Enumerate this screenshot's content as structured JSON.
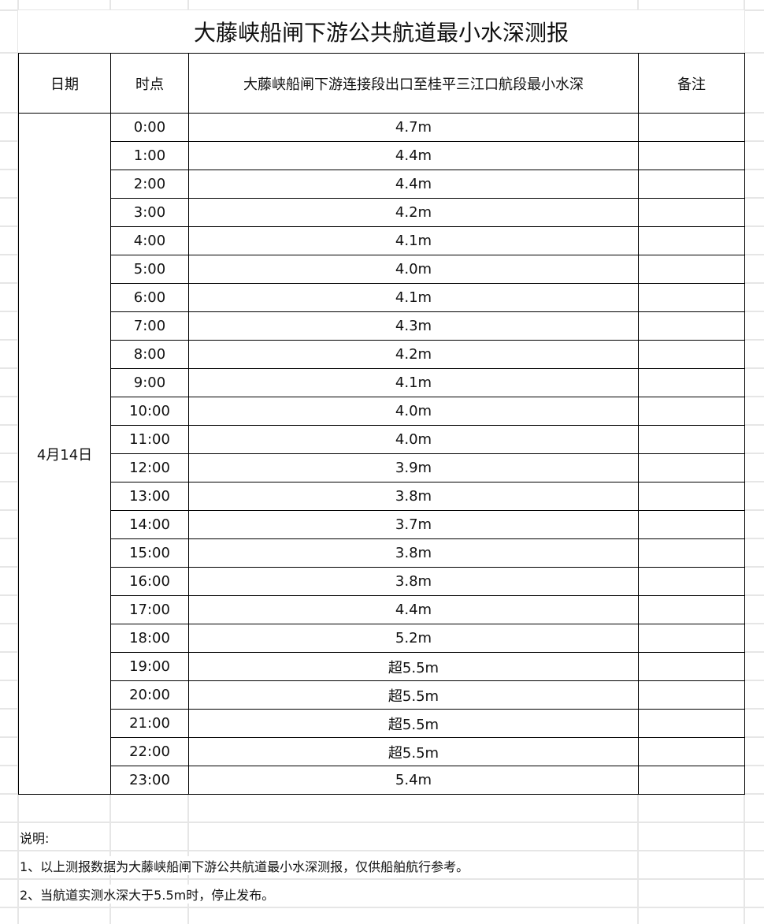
{
  "title": "大藤峡船闸下游公共航道最小水深测报",
  "headers": {
    "date": "日期",
    "time": "时点",
    "depth": "大藤峡船闸下游连接段出口至桂平三江口航段最小水深",
    "remark": "备注"
  },
  "date": "4月14日",
  "rows": [
    {
      "time": "0:00",
      "depth": "4.7m"
    },
    {
      "time": "1:00",
      "depth": "4.4m"
    },
    {
      "time": "2:00",
      "depth": "4.4m"
    },
    {
      "time": "3:00",
      "depth": "4.2m"
    },
    {
      "time": "4:00",
      "depth": "4.1m"
    },
    {
      "time": "5:00",
      "depth": "4.0m"
    },
    {
      "time": "6:00",
      "depth": "4.1m"
    },
    {
      "time": "7:00",
      "depth": "4.3m"
    },
    {
      "time": "8:00",
      "depth": "4.2m"
    },
    {
      "time": "9:00",
      "depth": "4.1m"
    },
    {
      "time": "10:00",
      "depth": "4.0m"
    },
    {
      "time": "11:00",
      "depth": "4.0m"
    },
    {
      "time": "12:00",
      "depth": "3.9m"
    },
    {
      "time": "13:00",
      "depth": "3.8m"
    },
    {
      "time": "14:00",
      "depth": "3.7m"
    },
    {
      "time": "15:00",
      "depth": "3.8m"
    },
    {
      "time": "16:00",
      "depth": "3.8m"
    },
    {
      "time": "17:00",
      "depth": "4.4m"
    },
    {
      "time": "18:00",
      "depth": "5.2m"
    },
    {
      "time": "19:00",
      "depth": "超5.5m"
    },
    {
      "time": "20:00",
      "depth": "超5.5m"
    },
    {
      "time": "21:00",
      "depth": "超5.5m"
    },
    {
      "time": "22:00",
      "depth": "超5.5m"
    },
    {
      "time": "23:00",
      "depth": "5.4m"
    }
  ],
  "notes": {
    "heading": "说明:",
    "items": [
      "1、以上测报数据为大藤峡船闸下游公共航道最小水深测报，仅供船舶航行参考。",
      "2、当航道实测水深大于5.5m时，停止发布。"
    ]
  }
}
